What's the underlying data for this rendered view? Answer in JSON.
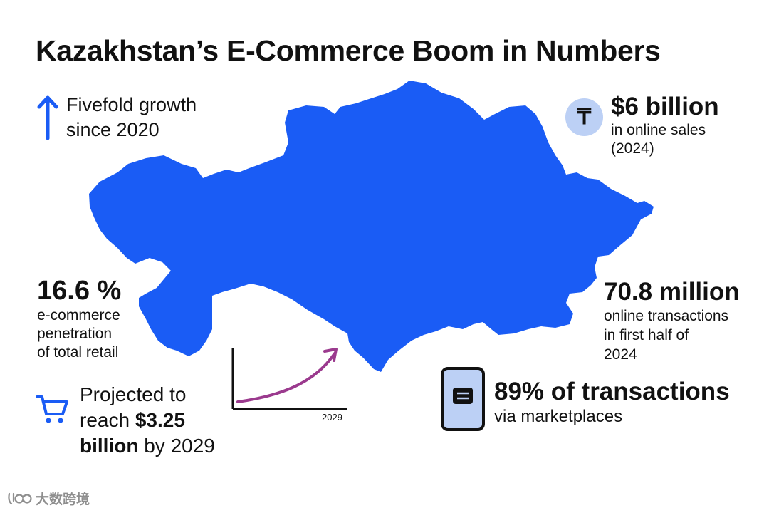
{
  "title": "Kazakhstan’s E-Commerce Boom in Numbers",
  "colors": {
    "map": "#1a5cf5",
    "accent_blue": "#1a5cf5",
    "curve": "#9b3a8e",
    "icon_bg": "#bcd0f5"
  },
  "growth": {
    "icon": "arrow-up-icon",
    "line1": "Fivefold growth",
    "line2": "since 2020"
  },
  "sales": {
    "icon": "tenge-icon",
    "symbol": "₸",
    "value": "$6 billion",
    "line1": "in online sales",
    "line2": "(2024)"
  },
  "penetration": {
    "value": "16.6 %",
    "line1": "e-commerce",
    "line2": "penetration",
    "line3": "of total retail"
  },
  "transactions": {
    "value": "70.8 million",
    "line1": "online transactions",
    "line2": "in first half of",
    "line3": "2024"
  },
  "projection": {
    "icon": "cart-icon",
    "line1": "Projected to",
    "line2_prefix": "reach ",
    "line2_value": "$3.25",
    "line3_value": "billion",
    "line3_suffix": " by 2029",
    "chart_year_label": "2029"
  },
  "marketplaces": {
    "icon": "phone-icon",
    "value": "89% of transactions",
    "line1": "via marketplaces"
  },
  "watermark": {
    "text": "大数跨境"
  }
}
